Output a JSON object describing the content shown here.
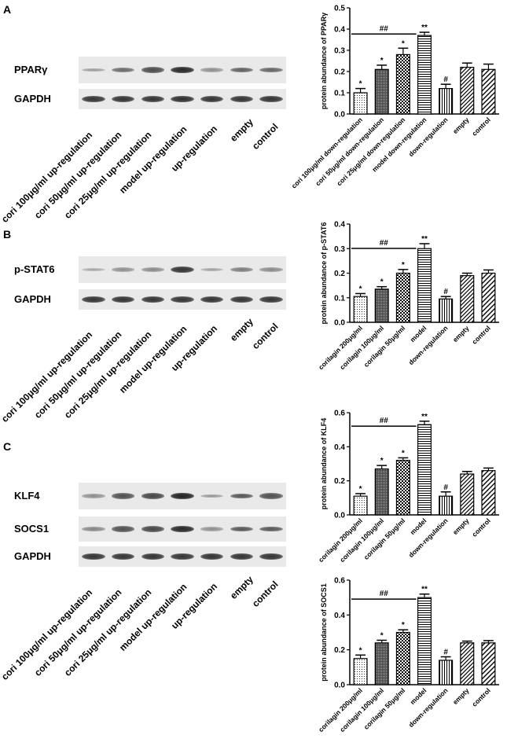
{
  "panels": [
    {
      "letter": "A",
      "blot": {
        "rows": [
          {
            "label": "PPARγ",
            "intensity": [
              0.28,
              0.55,
              0.72,
              0.92,
              0.35,
              0.6,
              0.58
            ]
          },
          {
            "label": "GAPDH",
            "intensity": [
              0.85,
              0.85,
              0.85,
              0.88,
              0.85,
              0.85,
              0.85
            ]
          }
        ],
        "lanes": [
          "cori 100μg/ml up-regulation",
          "cori 50μg/ml up-regulation",
          "cori 25μg/ml up-regulation",
          "model up-regulation",
          "up-regulation",
          "empty",
          "control"
        ]
      }
    },
    {
      "letter": "B",
      "blot": {
        "rows": [
          {
            "label": "p-STAT6",
            "intensity": [
              0.22,
              0.35,
              0.38,
              0.85,
              0.25,
              0.45,
              0.38
            ]
          },
          {
            "label": "GAPDH",
            "intensity": [
              0.85,
              0.85,
              0.85,
              0.85,
              0.85,
              0.85,
              0.85
            ]
          }
        ],
        "lanes": [
          "cori 100μg/ml up-regulation",
          "cori 50μg/ml up-regulation",
          "cori 25μg/ml up-regulation",
          "model up-regulation",
          "up-regulation",
          "empty",
          "control"
        ]
      }
    },
    {
      "letter": "C",
      "blot": {
        "rows": [
          {
            "label": "KLF4",
            "intensity": [
              0.35,
              0.7,
              0.75,
              0.95,
              0.3,
              0.65,
              0.7
            ]
          },
          {
            "label": "SOCS1",
            "intensity": [
              0.4,
              0.7,
              0.75,
              0.92,
              0.35,
              0.65,
              0.65
            ]
          },
          {
            "label": "GAPDH",
            "intensity": [
              0.85,
              0.85,
              0.85,
              0.85,
              0.85,
              0.85,
              0.85
            ]
          }
        ],
        "lanes": [
          "cori 100μg/ml up-regulation",
          "cori 50μg/ml up-regulation",
          "cori 25μg/ml up-regulation",
          "model up-regulation",
          "up-regulation",
          "empty",
          "control"
        ]
      }
    }
  ],
  "chart_data": [
    {
      "type": "bar",
      "ylabel": "protein abundance of PPARγ",
      "categories": [
        "cori 100μg/ml down-regulation",
        "cori 50μg/ml down-regulation",
        "cori 25μg/ml down-regulation",
        "model down-regulation",
        "down-regulation",
        "empty",
        "control"
      ],
      "values": [
        0.1,
        0.21,
        0.28,
        0.37,
        0.12,
        0.22,
        0.21
      ],
      "errors": [
        0.02,
        0.02,
        0.03,
        0.015,
        0.02,
        0.02,
        0.025
      ],
      "annotations": [
        "*",
        "*",
        "*",
        "**",
        "#",
        "",
        ""
      ],
      "bracket_label": "##",
      "ylim": [
        0,
        0.5
      ],
      "yticks": [
        "0.0",
        "0.1",
        "0.2",
        "0.3",
        "0.4",
        "0.5"
      ],
      "patterns": [
        "dots",
        "dense",
        "check",
        "hlines",
        "vlines",
        "diag",
        "diag2"
      ]
    },
    {
      "type": "bar",
      "ylabel": "protein abundance of p-STAT6",
      "categories": [
        "corilagin 200μg/ml",
        "corilagin 100μg/ml",
        "corilagin 50μg/ml",
        "model",
        "down-regulation",
        "empty",
        "control"
      ],
      "values": [
        0.105,
        0.135,
        0.2,
        0.3,
        0.095,
        0.19,
        0.2
      ],
      "errors": [
        0.012,
        0.01,
        0.015,
        0.02,
        0.01,
        0.01,
        0.013
      ],
      "annotations": [
        "*",
        "*",
        "*",
        "**",
        "#",
        "",
        ""
      ],
      "bracket_label": "##",
      "ylim": [
        0,
        0.4
      ],
      "yticks": [
        "0.0",
        "0.1",
        "0.2",
        "0.3",
        "0.4"
      ],
      "patterns": [
        "dots",
        "dense",
        "check",
        "hlines",
        "vlines",
        "diag",
        "diag2"
      ]
    },
    {
      "type": "bar",
      "ylabel": "protein abundance of KLF4",
      "categories": [
        "corilagin 200μg/ml",
        "corilagin 100μg/ml",
        "corilagin 50μg/ml",
        "model",
        "down-regulation",
        "empty",
        "control"
      ],
      "values": [
        0.11,
        0.27,
        0.32,
        0.53,
        0.11,
        0.24,
        0.26
      ],
      "errors": [
        0.015,
        0.02,
        0.015,
        0.02,
        0.025,
        0.015,
        0.015
      ],
      "annotations": [
        "*",
        "*",
        "*",
        "**",
        "#",
        "",
        ""
      ],
      "bracket_label": "##",
      "ylim": [
        0,
        0.6
      ],
      "yticks": [
        "0.0",
        "0.2",
        "0.4",
        "0.6"
      ],
      "patterns": [
        "dots",
        "dense",
        "check",
        "hlines",
        "vlines",
        "diag",
        "diag2"
      ]
    },
    {
      "type": "bar",
      "ylabel": "protein abundance of SOCS1",
      "categories": [
        "corilagin 200μg/ml",
        "corilagin 100μg/ml",
        "corilagin 50μg/ml",
        "model",
        "down-regulation",
        "empty",
        "control"
      ],
      "values": [
        0.15,
        0.24,
        0.3,
        0.5,
        0.14,
        0.24,
        0.24
      ],
      "errors": [
        0.02,
        0.015,
        0.015,
        0.02,
        0.02,
        0.01,
        0.013
      ],
      "annotations": [
        "*",
        "*",
        "*",
        "**",
        "#",
        "",
        ""
      ],
      "bracket_label": "##",
      "ylim": [
        0,
        0.6
      ],
      "yticks": [
        "0.0",
        "0.2",
        "0.4",
        "0.6"
      ],
      "patterns": [
        "dots",
        "dense",
        "check",
        "hlines",
        "vlines",
        "diag",
        "diag2"
      ]
    }
  ]
}
